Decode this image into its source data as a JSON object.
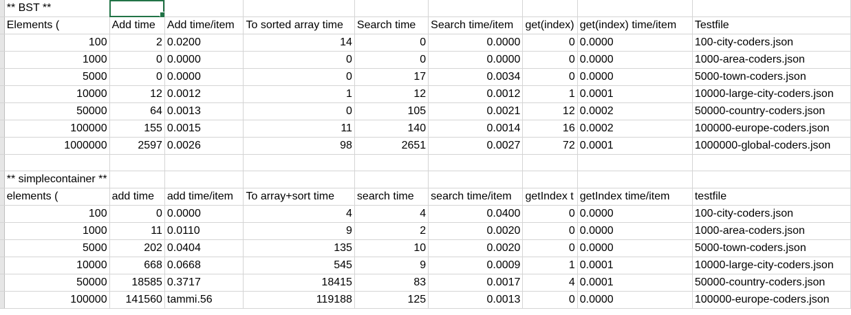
{
  "cells": {
    "r0": {
      "c0": "** BST **"
    },
    "r1": {
      "c0": "Elements (",
      "c1": "Add time",
      "c2": "Add time/item",
      "c3": "To sorted array time",
      "c4": "Search time",
      "c5": "Search time/item",
      "c6": "get(index)",
      "c7": "get(index) time/item",
      "c8": "Testfile"
    },
    "r2": {
      "c0": "100",
      "c1": "2",
      "c2": "0.0200",
      "c3": "14",
      "c4": "0",
      "c5": "0.0000",
      "c6": "0",
      "c7": "0.0000",
      "c8": "100-city-coders.json"
    },
    "r3": {
      "c0": "1000",
      "c1": "0",
      "c2": "0.0000",
      "c3": "0",
      "c4": "0",
      "c5": "0.0000",
      "c6": "0",
      "c7": "0.0000",
      "c8": "1000-area-coders.json"
    },
    "r4": {
      "c0": "5000",
      "c1": "0",
      "c2": "0.0000",
      "c3": "0",
      "c4": "17",
      "c5": "0.0034",
      "c6": "0",
      "c7": "0.0000",
      "c8": "5000-town-coders.json"
    },
    "r5": {
      "c0": "10000",
      "c1": "12",
      "c2": "0.0012",
      "c3": "1",
      "c4": "12",
      "c5": "0.0012",
      "c6": "1",
      "c7": "0.0001",
      "c8": "10000-large-city-coders.json"
    },
    "r6": {
      "c0": "50000",
      "c1": "64",
      "c2": "0.0013",
      "c3": "0",
      "c4": "105",
      "c5": "0.0021",
      "c6": "12",
      "c7": "0.0002",
      "c8": "50000-country-coders.json"
    },
    "r7": {
      "c0": "100000",
      "c1": "155",
      "c2": "0.0015",
      "c3": "11",
      "c4": "140",
      "c5": "0.0014",
      "c6": "16",
      "c7": "0.0002",
      "c8": "100000-europe-coders.json"
    },
    "r8": {
      "c0": "1000000",
      "c1": "2597",
      "c2": "0.0026",
      "c3": "98",
      "c4": "2651",
      "c5": "0.0027",
      "c6": "72",
      "c7": "0.0001",
      "c8": "1000000-global-coders.json"
    },
    "r10": {
      "c0": "** simplecontainer **"
    },
    "r11": {
      "c0": "elements (",
      "c1": "add time",
      "c2": "add time/item",
      "c3": "To array+sort time",
      "c4": "search time",
      "c5": "search time/item",
      "c6": "getIndex t",
      "c7": "getIndex time/item",
      "c8": "testfile"
    },
    "r12": {
      "c0": "100",
      "c1": "0",
      "c2": "0.0000",
      "c3": "4",
      "c4": "4",
      "c5": "0.0400",
      "c6": "0",
      "c7": "0.0000",
      "c8": "100-city-coders.json"
    },
    "r13": {
      "c0": "1000",
      "c1": "11",
      "c2": "0.0110",
      "c3": "9",
      "c4": "2",
      "c5": "0.0020",
      "c6": "0",
      "c7": "0.0000",
      "c8": "1000-area-coders.json"
    },
    "r14": {
      "c0": "5000",
      "c1": "202",
      "c2": "0.0404",
      "c3": "135",
      "c4": "10",
      "c5": "0.0020",
      "c6": "0",
      "c7": "0.0000",
      "c8": "5000-town-coders.json"
    },
    "r15": {
      "c0": "10000",
      "c1": "668",
      "c2": "0.0668",
      "c3": "545",
      "c4": "9",
      "c5": "0.0009",
      "c6": "1",
      "c7": "0.0001",
      "c8": "10000-large-city-coders.json"
    },
    "r16": {
      "c0": "50000",
      "c1": "18585",
      "c2": "0.3717",
      "c3": "18415",
      "c4": "83",
      "c5": "0.0017",
      "c6": "4",
      "c7": "0.0001",
      "c8": "50000-country-coders.json"
    },
    "r17": {
      "c0": "100000",
      "c1": "141560",
      "c2": "tammi.56",
      "c3": "119188",
      "c4": "125",
      "c5": "0.0013",
      "c6": "0",
      "c7": "0.0000",
      "c8": "100000-europe-coders.json"
    }
  }
}
